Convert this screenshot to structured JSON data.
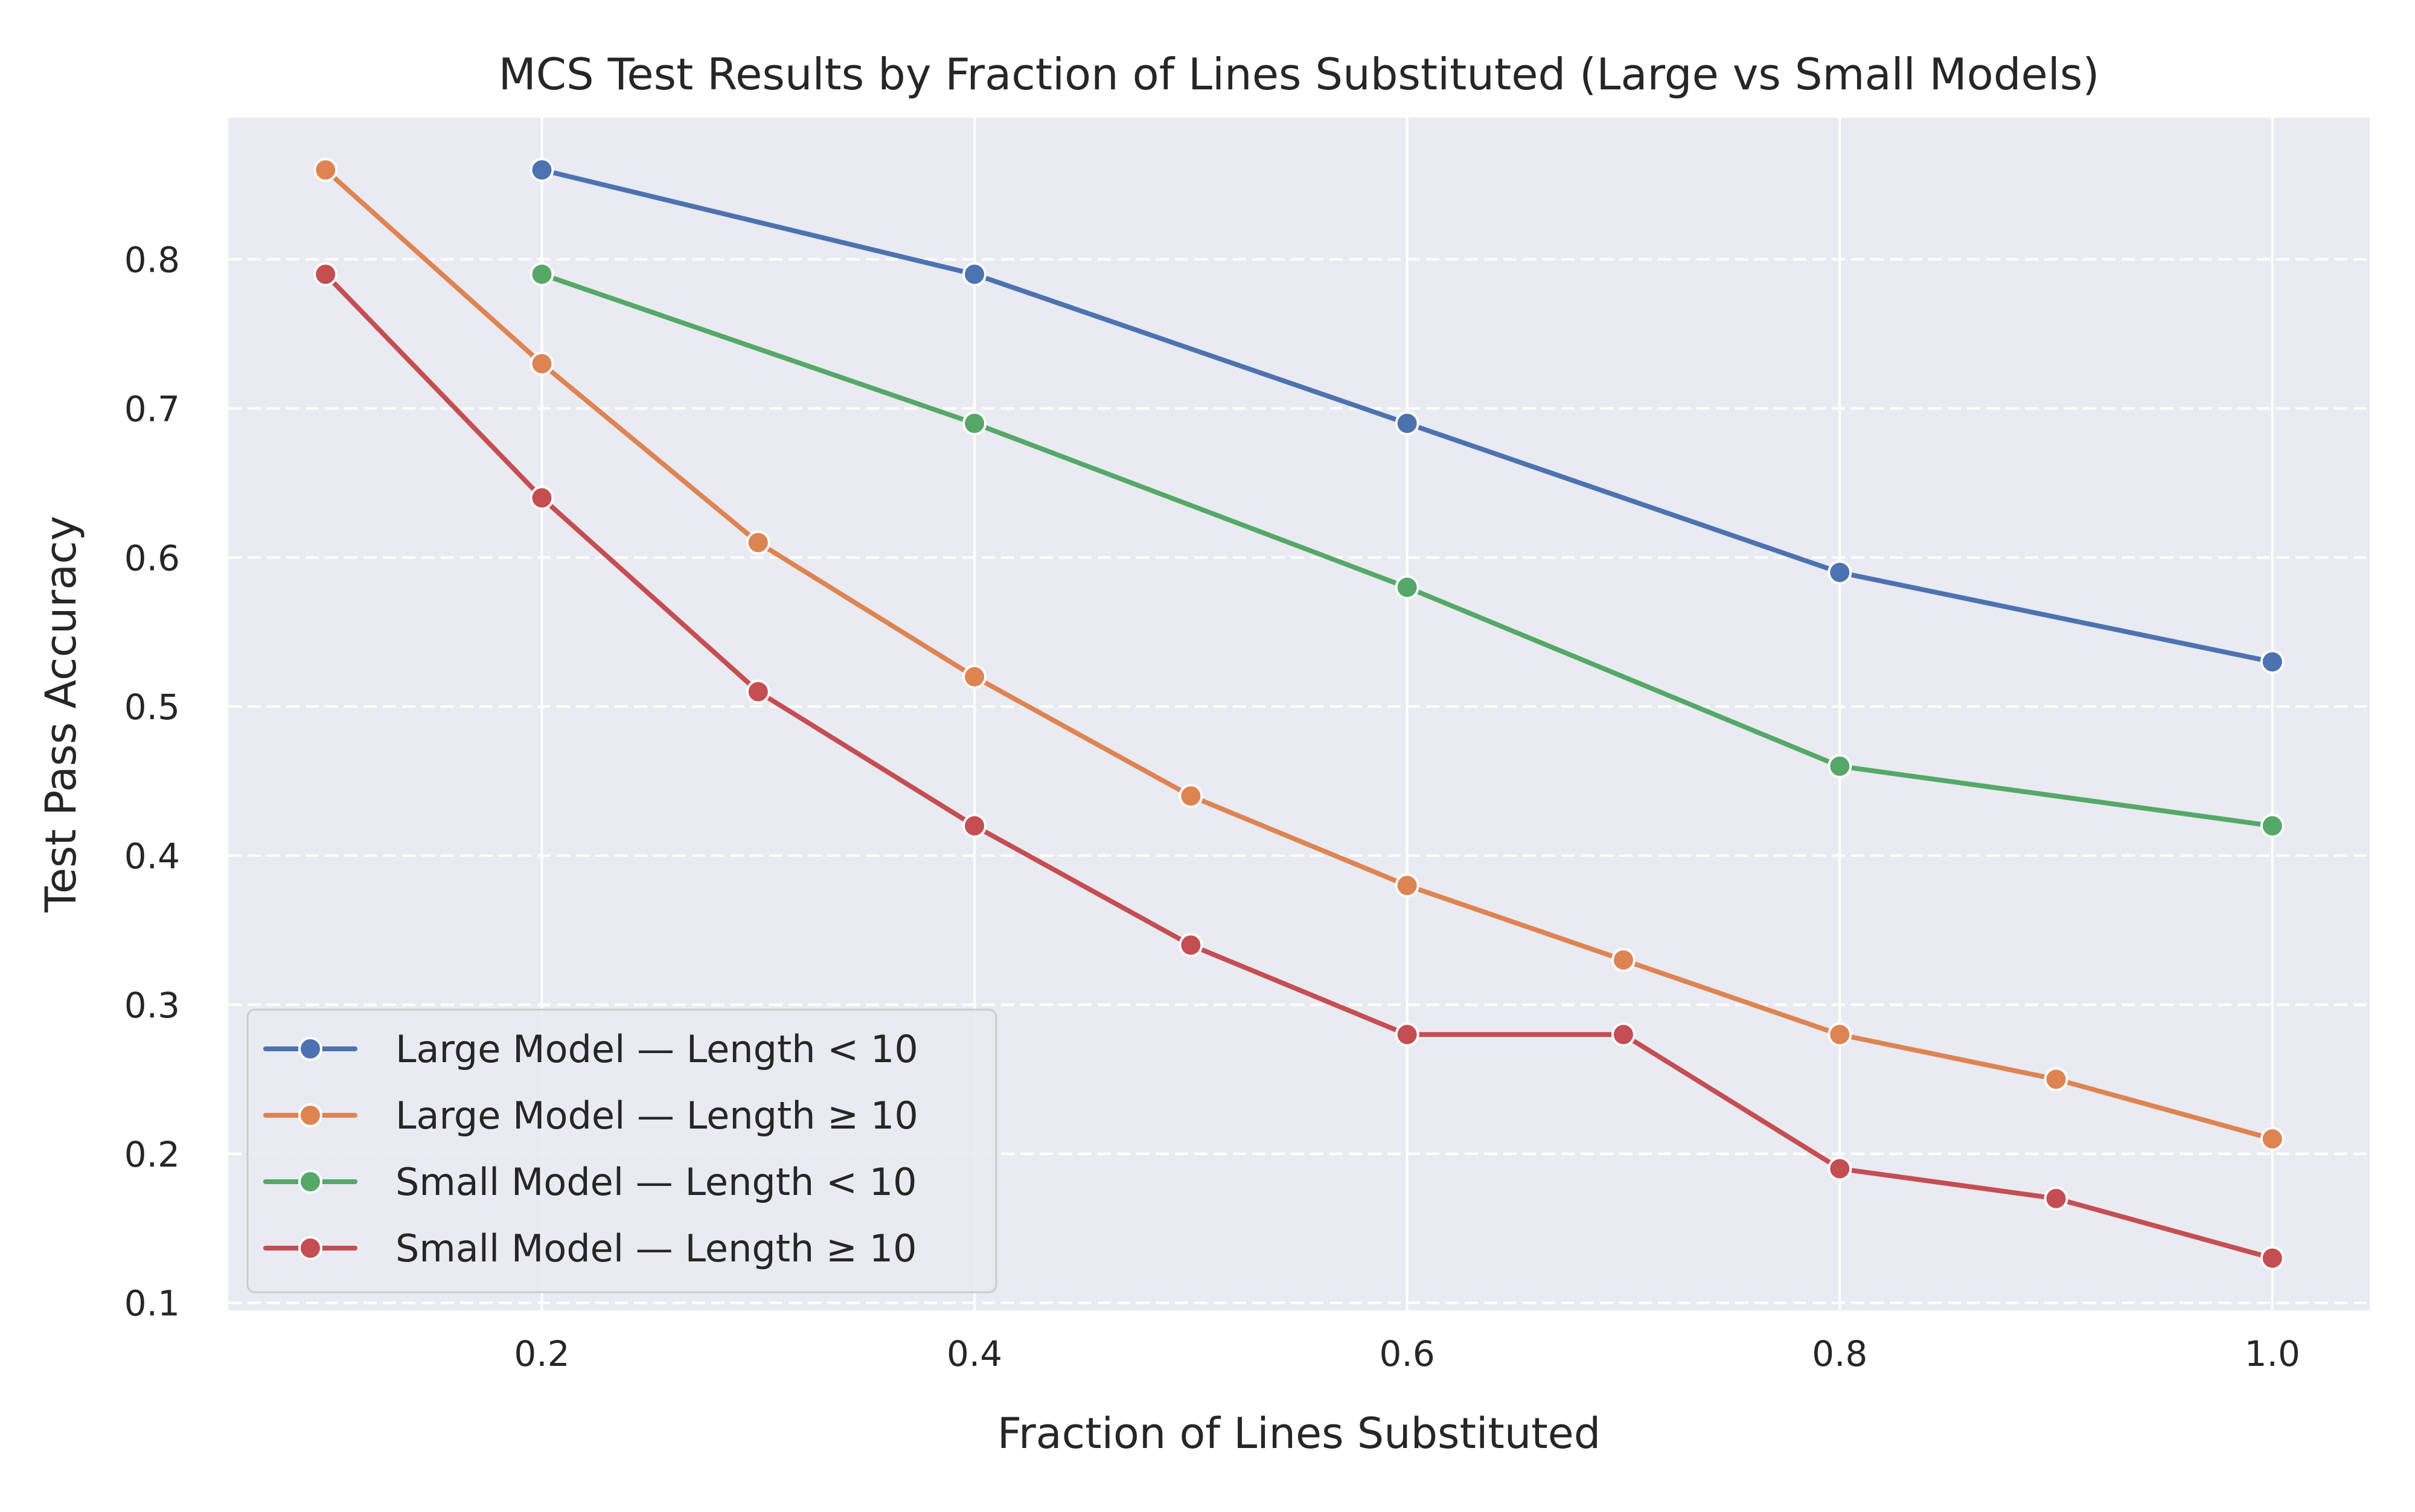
{
  "chart_data": {
    "type": "line",
    "title": "MCS Test Results by Fraction of Lines Substituted (Large vs Small Models)",
    "xlabel": "Fraction of Lines Substituted",
    "ylabel": "Test Pass Accuracy",
    "xlim": [
      0.055,
      1.045
    ],
    "ylim": [
      0.095,
      0.895
    ],
    "xticks": [
      0.2,
      0.4,
      0.6,
      0.8,
      1.0
    ],
    "xtick_labels": [
      "0.2",
      "0.4",
      "0.6",
      "0.8",
      "1.0"
    ],
    "yticks": [
      0.1,
      0.2,
      0.3,
      0.4,
      0.5,
      0.6,
      0.7,
      0.8
    ],
    "ytick_labels": [
      "0.1",
      "0.2",
      "0.3",
      "0.4",
      "0.5",
      "0.6",
      "0.7",
      "0.8"
    ],
    "grid": true,
    "background": "#eaeaf2",
    "legend_position": "lower-left",
    "series": [
      {
        "name": "Large Model — Length < 10",
        "color": "#4c72b0",
        "x": [
          0.2,
          0.4,
          0.6,
          0.8,
          1.0
        ],
        "y": [
          0.86,
          0.79,
          0.69,
          0.59,
          0.53
        ]
      },
      {
        "name": "Large Model — Length ≥ 10",
        "color": "#dd8452",
        "x": [
          0.1,
          0.2,
          0.3,
          0.4,
          0.5,
          0.6,
          0.7,
          0.8,
          0.9,
          1.0
        ],
        "y": [
          0.86,
          0.73,
          0.61,
          0.52,
          0.44,
          0.38,
          0.33,
          0.28,
          0.25,
          0.21
        ]
      },
      {
        "name": "Small Model — Length < 10",
        "color": "#55a868",
        "x": [
          0.2,
          0.4,
          0.6,
          0.8,
          1.0
        ],
        "y": [
          0.79,
          0.69,
          0.58,
          0.46,
          0.42
        ]
      },
      {
        "name": "Small Model — Length ≥ 10",
        "color": "#c44e52",
        "x": [
          0.1,
          0.2,
          0.3,
          0.4,
          0.5,
          0.6,
          0.7,
          0.8,
          0.9,
          1.0
        ],
        "y": [
          0.79,
          0.64,
          0.51,
          0.42,
          0.34,
          0.28,
          0.28,
          0.19,
          0.17,
          0.13
        ]
      }
    ]
  }
}
